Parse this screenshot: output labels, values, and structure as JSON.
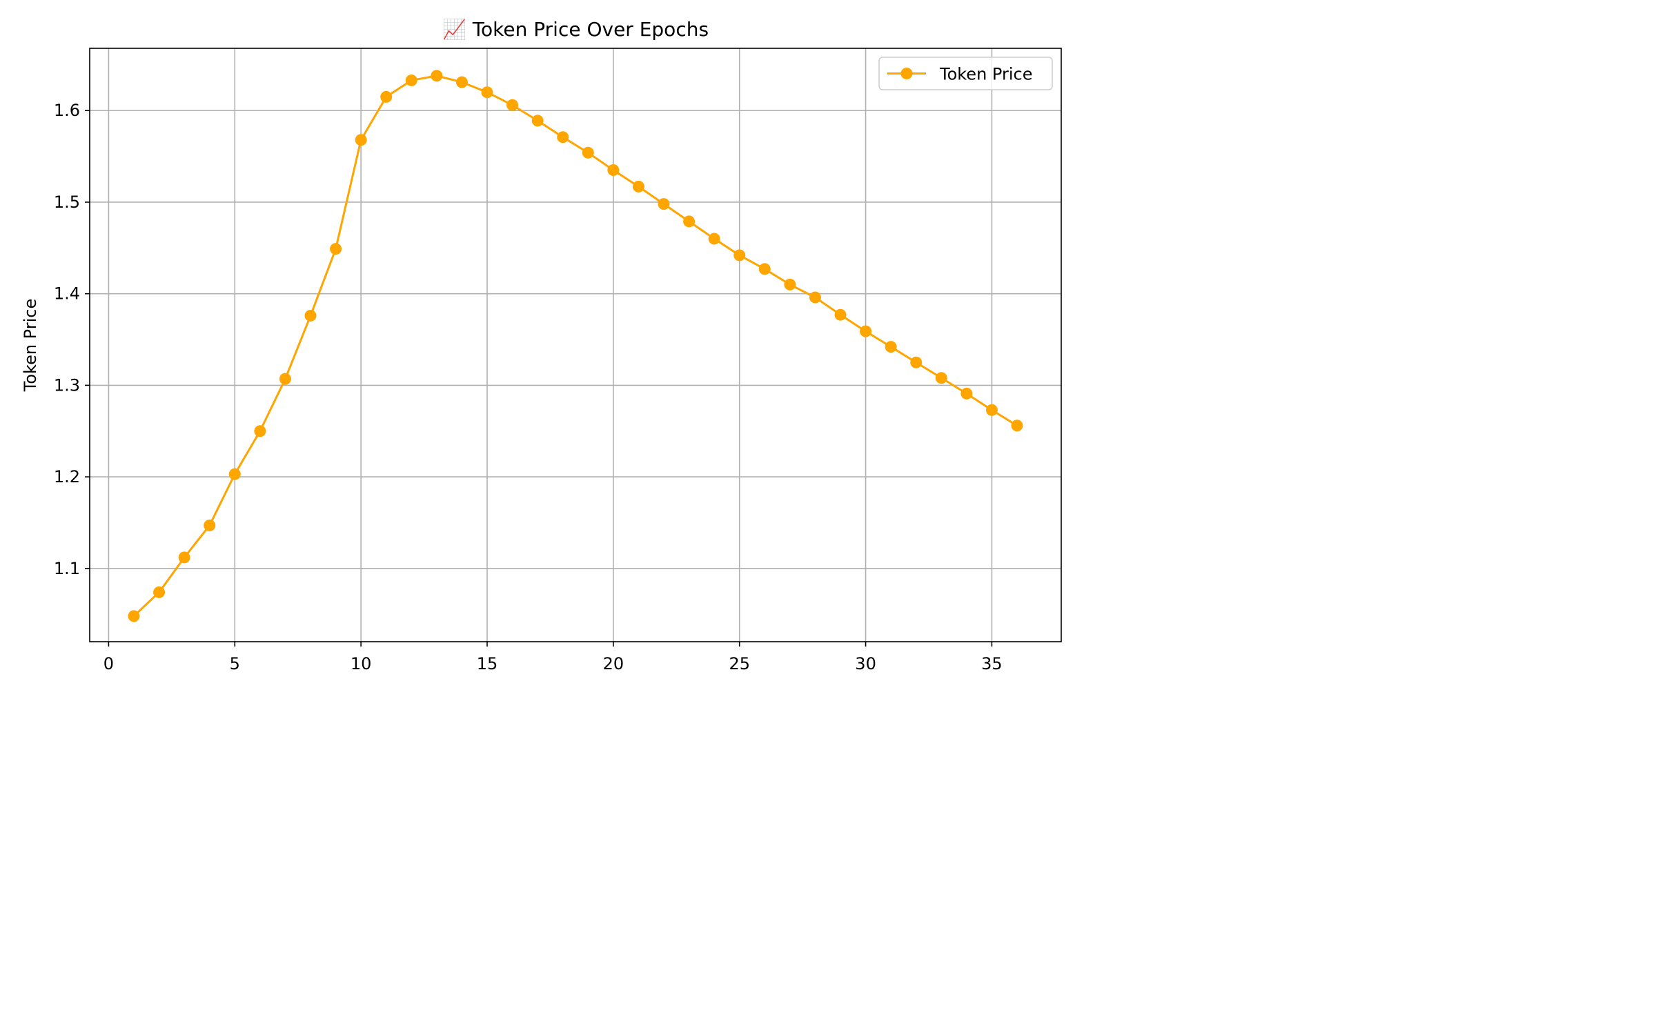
{
  "chart_data": {
    "type": "line",
    "title": "📈 Token Price Over Epochs",
    "xlabel": "",
    "ylabel": "Token Price",
    "xlim": [
      -0.75,
      37.75
    ],
    "ylim": [
      1.02,
      1.668
    ],
    "xticks": [
      0,
      5,
      10,
      15,
      20,
      25,
      30,
      35
    ],
    "yticks": [
      1.1,
      1.2,
      1.3,
      1.4,
      1.5,
      1.6
    ],
    "xtick_labels": [
      "0",
      "5",
      "10",
      "15",
      "20",
      "25",
      "30",
      "35"
    ],
    "ytick_labels": [
      "1.1",
      "1.2",
      "1.3",
      "1.4",
      "1.5",
      "1.6"
    ],
    "grid": true,
    "legend_position": "top-right",
    "colors": {
      "series": "#FFA500",
      "grid": "#b0b0b0",
      "axes": "#000000"
    },
    "series": [
      {
        "name": "Token Price",
        "marker": "circle",
        "x": [
          1,
          2,
          3,
          4,
          5,
          6,
          7,
          8,
          9,
          10,
          11,
          12,
          13,
          14,
          15,
          16,
          17,
          18,
          19,
          20,
          21,
          22,
          23,
          24,
          25,
          26,
          27,
          28,
          29,
          30,
          31,
          32,
          33,
          34,
          35,
          36
        ],
        "y": [
          1.048,
          1.074,
          1.112,
          1.147,
          1.203,
          1.25,
          1.307,
          1.376,
          1.449,
          1.568,
          1.615,
          1.633,
          1.638,
          1.631,
          1.62,
          1.606,
          1.589,
          1.571,
          1.554,
          1.535,
          1.517,
          1.498,
          1.479,
          1.46,
          1.442,
          1.427,
          1.41,
          1.396,
          1.377,
          1.359,
          1.342,
          1.325,
          1.308,
          1.291,
          1.273,
          1.256
        ]
      }
    ]
  }
}
